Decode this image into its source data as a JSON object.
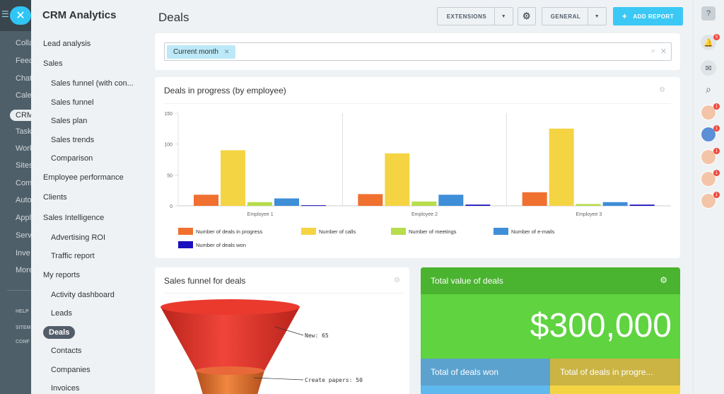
{
  "bg_nav": {
    "items": [
      "Colla",
      "Feec",
      "Chat",
      "Cale",
      "CRM",
      "Task",
      "Work",
      "Sites",
      "Com",
      "Auto",
      "Appl",
      "Serv",
      "Inve",
      "More"
    ],
    "bottom_items": [
      "HELP",
      "SITEM",
      "CONF"
    ]
  },
  "sidebar": {
    "title": "CRM Analytics",
    "items": [
      {
        "label": "Lead analysis",
        "level": 1
      },
      {
        "label": "Sales",
        "level": 1
      },
      {
        "label": "Sales funnel (with con...",
        "level": 2
      },
      {
        "label": "Sales funnel",
        "level": 2
      },
      {
        "label": "Sales plan",
        "level": 2
      },
      {
        "label": "Sales trends",
        "level": 2
      },
      {
        "label": "Comparison",
        "level": 2
      },
      {
        "label": "Employee performance",
        "level": 1
      },
      {
        "label": "Clients",
        "level": 1
      },
      {
        "label": "Sales Intelligence",
        "level": 1
      },
      {
        "label": "Advertising ROI",
        "level": 2
      },
      {
        "label": "Traffic report",
        "level": 2
      },
      {
        "label": "My reports",
        "level": 1
      },
      {
        "label": "Activity dashboard",
        "level": 2
      },
      {
        "label": "Leads",
        "level": 2
      },
      {
        "label": "Deals",
        "level": 2,
        "selected": true
      },
      {
        "label": "Contacts",
        "level": 2
      },
      {
        "label": "Companies",
        "level": 2
      },
      {
        "label": "Invoices",
        "level": 2
      }
    ]
  },
  "header": {
    "title": "Deals",
    "extensions_label": "EXTENSIONS",
    "general_label": "GENERAL",
    "add_report_label": "ADD REPORT"
  },
  "filter": {
    "chip": "Current month"
  },
  "deals_chart": {
    "title": "Deals in progress (by employee)"
  },
  "chart_data": {
    "type": "bar",
    "categories": [
      "Employee 1",
      "Employee 2",
      "Employee 3"
    ],
    "ylim": [
      0,
      150
    ],
    "yticks": [
      0,
      50,
      100,
      150
    ],
    "legend_position": "bottom",
    "series": [
      {
        "name": "Number of deals in progress",
        "color": "#f07030",
        "values": [
          18,
          19,
          22
        ]
      },
      {
        "name": "Number of calls",
        "color": "#f5d443",
        "values": [
          90,
          85,
          125
        ]
      },
      {
        "name": "Number of meetings",
        "color": "#b7dd4c",
        "values": [
          6,
          7,
          3
        ]
      },
      {
        "name": "Number of e-mails",
        "color": "#3f8ed8",
        "values": [
          12,
          18,
          6
        ]
      },
      {
        "name": "Number of deals won",
        "color": "#1b0fbf",
        "values": [
          1,
          2,
          2
        ]
      }
    ]
  },
  "funnel": {
    "title": "Sales funnel for deals",
    "stages": [
      {
        "label": "New: 65",
        "color": "#e8352a"
      },
      {
        "label": "Create papers: 50",
        "color": "#e86a2a"
      }
    ]
  },
  "total": {
    "title": "Total value of deals",
    "value": "$300,000",
    "won_label": "Total of deals won",
    "progress_label": "Total of deals in progre..."
  },
  "rail": {
    "notifications_badge": "5",
    "avatar_badges": [
      "1",
      "1",
      "1",
      "1",
      "1"
    ]
  }
}
